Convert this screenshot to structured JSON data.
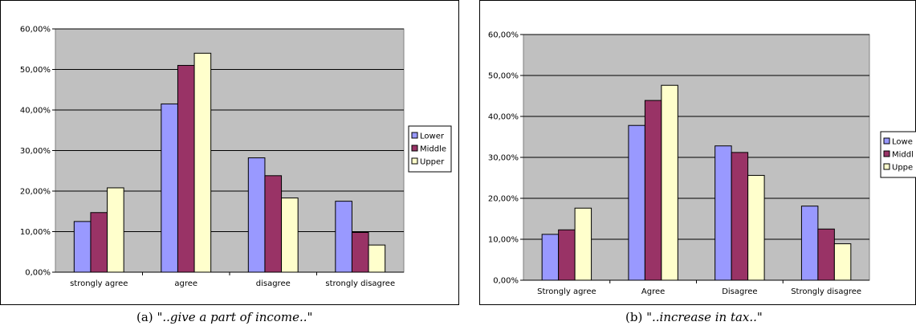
{
  "colors": {
    "plot_bg": "#c0c0c0",
    "gridline": "#000000",
    "series": [
      "#9999ff",
      "#993366",
      "#ffffcc"
    ]
  },
  "chart_data": [
    {
      "type": "bar",
      "categories": [
        "strongly agree",
        "agree",
        "disagree",
        "strongly disagree"
      ],
      "series": [
        {
          "name": "Lower",
          "values": [
            12.5,
            41.5,
            28.2,
            17.5
          ]
        },
        {
          "name": "Middle",
          "values": [
            14.7,
            51.0,
            23.8,
            9.8
          ]
        },
        {
          "name": "Upper",
          "values": [
            20.8,
            54.0,
            18.3,
            6.7
          ]
        }
      ],
      "ylim": [
        0,
        60
      ],
      "yticks": [
        "0,00%",
        "10,00%",
        "20,00%",
        "30,00%",
        "40,00%",
        "50,00%",
        "60,00%"
      ],
      "grid": true,
      "legend_position": "right",
      "caption": {
        "label": "(a)",
        "text": "\"..give a part of income..\""
      }
    },
    {
      "type": "bar",
      "categories": [
        "Strongly agree",
        "Agree",
        "Disagree",
        "Strongly disagree"
      ],
      "series": [
        {
          "name": "Lowe",
          "values": [
            11.2,
            37.8,
            32.8,
            18.1
          ]
        },
        {
          "name": "Middl",
          "values": [
            12.3,
            43.9,
            31.2,
            12.5
          ]
        },
        {
          "name": "Uppe",
          "values": [
            17.6,
            47.6,
            25.6,
            8.9
          ]
        }
      ],
      "ylim": [
        0,
        60
      ],
      "yticks": [
        "0,00%",
        "10,00%",
        "20,00%",
        "30,00%",
        "40,00%",
        "50,00%",
        "60,00%"
      ],
      "grid": true,
      "legend_position": "right",
      "caption": {
        "label": "(b)",
        "text": "\"..increase in tax..\""
      }
    }
  ]
}
